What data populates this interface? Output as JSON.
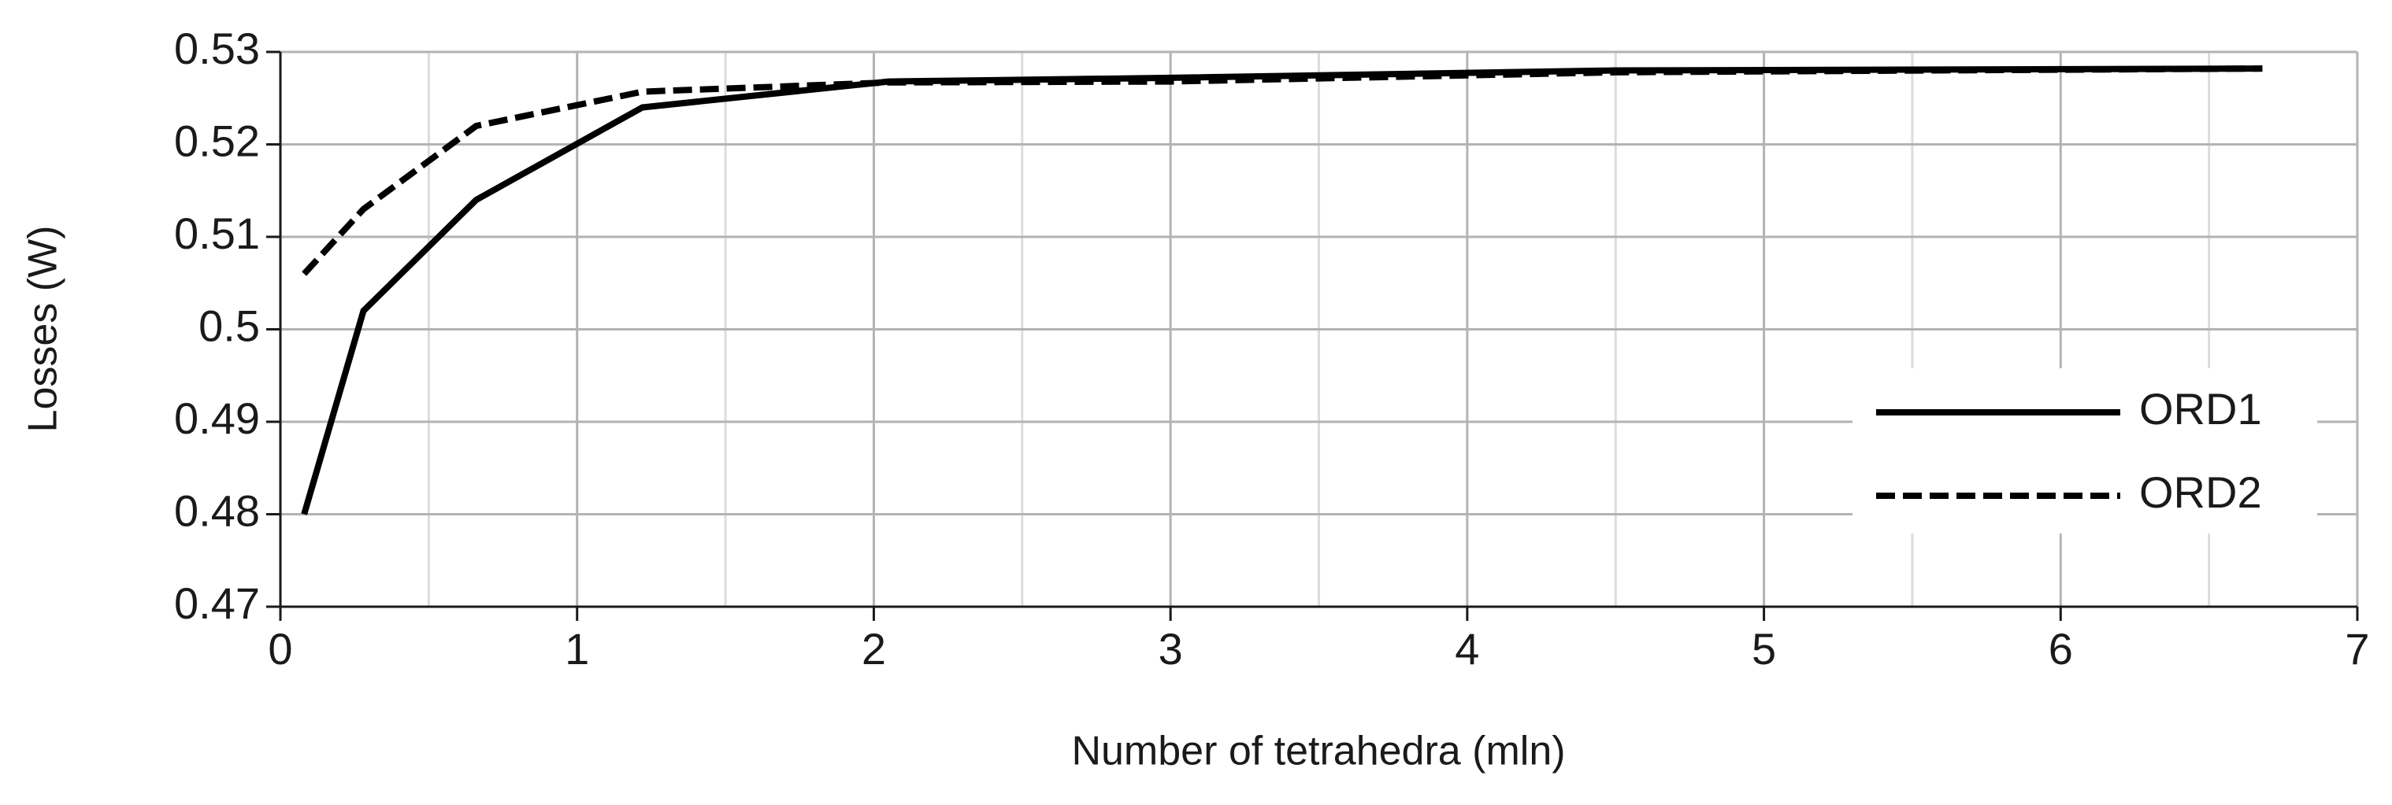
{
  "chart_data": {
    "type": "line",
    "xlabel": "Number of tetrahedra (mln)",
    "ylabel": "Losses (W)",
    "xlim": [
      0,
      7
    ],
    "xticks": [
      0,
      1,
      2,
      3,
      4,
      5,
      6,
      7
    ],
    "xminor": [
      0.5,
      1.5,
      2.5,
      3.5,
      4.5,
      5.5,
      6.5
    ],
    "ylim": [
      0.47,
      0.53
    ],
    "yticks": [
      0.47,
      0.48,
      0.49,
      0.5,
      0.51,
      0.52,
      0.53
    ],
    "grid": true,
    "legend": "right",
    "series": [
      {
        "name": "ORD1",
        "color": "#000000",
        "dash": false,
        "x": [
          0.08,
          0.28,
          0.66,
          1.22,
          2.05,
          3.0,
          4.5,
          6.68
        ],
        "values": [
          0.48,
          0.502,
          0.514,
          0.524,
          0.5268,
          0.5272,
          0.528,
          0.5282
        ]
      },
      {
        "name": "ORD2",
        "color": "#000000",
        "dash": true,
        "x": [
          0.08,
          0.28,
          0.66,
          1.22,
          2.05,
          3.0,
          4.5,
          6.68
        ],
        "values": [
          0.506,
          0.513,
          0.522,
          0.5257,
          0.5267,
          0.5268,
          0.5278,
          0.5282
        ]
      }
    ]
  }
}
